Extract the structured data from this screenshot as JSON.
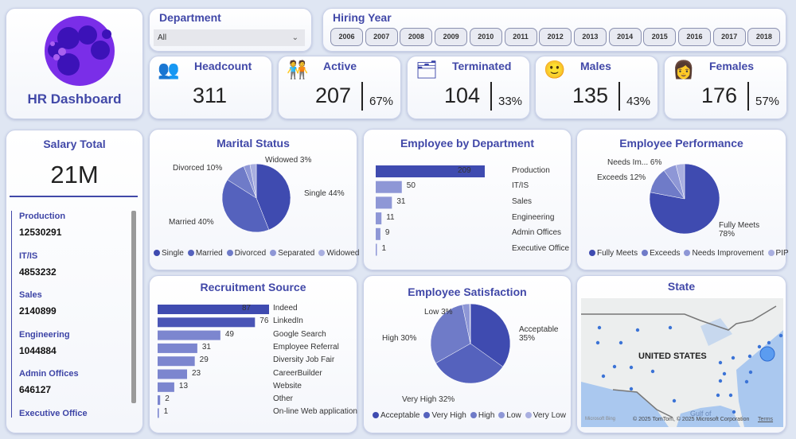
{
  "header": {
    "title": "HR Dashboard"
  },
  "department_slicer": {
    "label": "Department",
    "value": "All"
  },
  "hiring_year": {
    "label": "Hiring Year",
    "years": [
      "2006",
      "2007",
      "2008",
      "2009",
      "2010",
      "2011",
      "2012",
      "2013",
      "2014",
      "2015",
      "2016",
      "2017",
      "2018"
    ]
  },
  "kpis": [
    {
      "label": "Headcount",
      "value": "311",
      "icon": "people-icon"
    },
    {
      "label": "Active",
      "value": "207",
      "pct": "67%",
      "icon": "team-check-icon"
    },
    {
      "label": "Terminated",
      "value": "104",
      "pct": "33%",
      "icon": "terminated-icon"
    },
    {
      "label": "Males",
      "value": "135",
      "pct": "43%",
      "icon": "male-icon"
    },
    {
      "label": "Females",
      "value": "176",
      "pct": "57%",
      "icon": "female-icon"
    }
  ],
  "salary": {
    "title": "Salary Total",
    "total": "21M",
    "items": [
      {
        "name": "Production",
        "value": "12530291"
      },
      {
        "name": "IT/IS",
        "value": "4853232"
      },
      {
        "name": "Sales",
        "value": "2140899"
      },
      {
        "name": "Engineering",
        "value": "1044884"
      },
      {
        "name": "Admin Offices",
        "value": "646127"
      },
      {
        "name": "Executive Office",
        "value": ""
      }
    ]
  },
  "colors": {
    "accent": "#4148a8",
    "bg": "#dfe6f3"
  },
  "chart_data": [
    {
      "id": "marital",
      "type": "pie",
      "title": "Marital Status",
      "categories": [
        "Single",
        "Married",
        "Divorced",
        "Separated",
        "Widowed"
      ],
      "values": [
        44,
        40,
        10,
        3,
        3
      ],
      "labels": [
        "Single 44%",
        "Married 40%",
        "Divorced 10%",
        "",
        "Widowed 3%"
      ],
      "colors": [
        "#3f4bb0",
        "#5562bd",
        "#6f7bc8",
        "#8e97d6",
        "#a9afe0"
      ],
      "legend": "bottom"
    },
    {
      "id": "dept",
      "type": "bar",
      "title": "Employee by Department",
      "categories": [
        "Production",
        "IT/IS",
        "Sales",
        "Engineering",
        "Admin Offices",
        "Executive Office"
      ],
      "values": [
        209,
        50,
        31,
        11,
        9,
        1
      ]
    },
    {
      "id": "perf",
      "type": "pie",
      "title": "Employee Performance",
      "categories": [
        "Fully Meets",
        "Exceeds",
        "Needs Improvement",
        "PIP"
      ],
      "values": [
        78,
        12,
        6,
        4
      ],
      "labels": [
        "Fully Meets 78%",
        "Exceeds 12%",
        "Needs Im... 6%",
        ""
      ],
      "colors": [
        "#3f4bb0",
        "#6f7bc8",
        "#8e97d6",
        "#a9afe0"
      ],
      "legend": "bottom"
    },
    {
      "id": "recruit",
      "type": "bar",
      "title": "Recruitment Source",
      "categories": [
        "Indeed",
        "LinkedIn",
        "Google Search",
        "Employee Referral",
        "Diversity Job Fair",
        "CareerBuilder",
        "Website",
        "Other",
        "On-line Web application"
      ],
      "values": [
        87,
        76,
        49,
        31,
        29,
        23,
        13,
        2,
        1
      ]
    },
    {
      "id": "sat",
      "type": "pie",
      "title": "Employee Satisfaction",
      "categories": [
        "Acceptable",
        "Very High",
        "High",
        "Low",
        "Very Low"
      ],
      "values": [
        35,
        32,
        30,
        3,
        0.3
      ],
      "labels": [
        "Acceptable 35%",
        "Very High 32%",
        "High 30%",
        "Low 3%",
        ""
      ],
      "colors": [
        "#3f4bb0",
        "#5562bd",
        "#6f7bc8",
        "#8e97d6",
        "#a9afe0"
      ],
      "legend": "bottom"
    }
  ],
  "map": {
    "title": "State",
    "country_label": "UNITED STATES",
    "gulf_label": "Gulf of",
    "attribution": "© 2025 TomTom, © 2025 Microsoft Corporation",
    "terms": "Terms",
    "brand": "Microsoft Bing"
  }
}
